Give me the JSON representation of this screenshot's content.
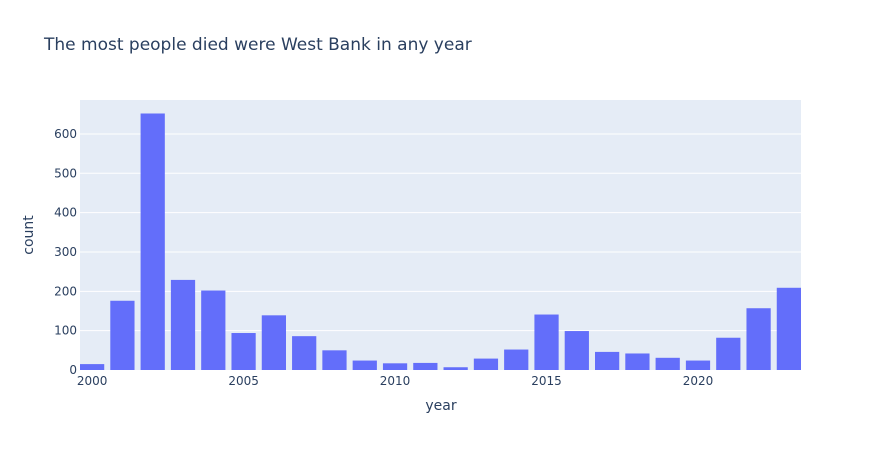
{
  "chart_data": {
    "type": "bar",
    "title": "The most people died were West Bank in any year",
    "xlabel": "year",
    "ylabel": "count",
    "x": [
      2000,
      2001,
      2002,
      2003,
      2004,
      2005,
      2006,
      2007,
      2008,
      2009,
      2010,
      2011,
      2012,
      2013,
      2014,
      2015,
      2016,
      2017,
      2018,
      2019,
      2020,
      2021,
      2022,
      2023
    ],
    "values": [
      15,
      176,
      652,
      229,
      202,
      94,
      139,
      86,
      50,
      24,
      17,
      18,
      7,
      29,
      52,
      141,
      99,
      46,
      42,
      31,
      24,
      82,
      157,
      209
    ],
    "x_ticks": [
      2000,
      2005,
      2010,
      2015,
      2020
    ],
    "y_ticks": [
      0,
      100,
      200,
      300,
      400,
      500,
      600
    ],
    "xlim": [
      1999.6,
      2023.4
    ],
    "ylim": [
      0,
      686.3
    ],
    "grid": true,
    "colors": {
      "bar": "#636efa",
      "plot_bg": "#e5ecf6",
      "grid": "#ffffff",
      "text": "#2a3f5f"
    }
  }
}
